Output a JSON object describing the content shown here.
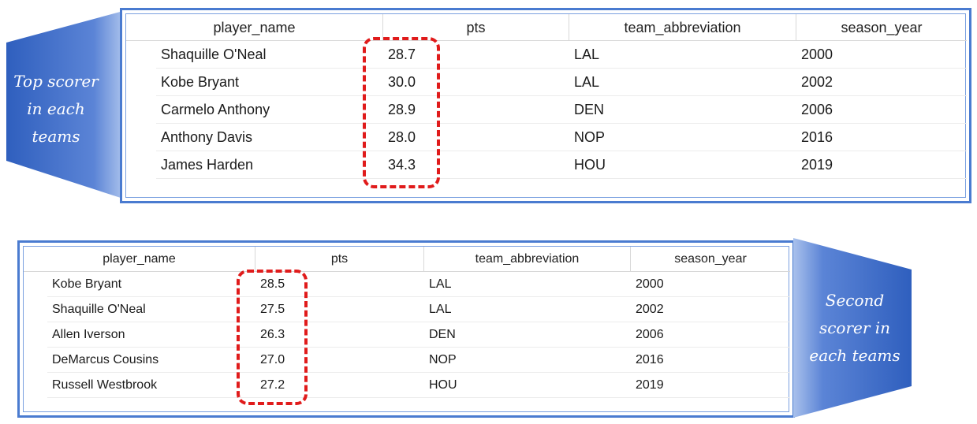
{
  "top_table": {
    "callout": {
      "lines": [
        "Top scorer",
        "in each",
        "teams"
      ]
    },
    "columns": [
      "player_name",
      "pts",
      "team_abbreviation",
      "season_year"
    ],
    "rows": [
      [
        "Shaquille O'Neal",
        "28.7",
        "LAL",
        "2000"
      ],
      [
        "Kobe Bryant",
        "30.0",
        "LAL",
        "2002"
      ],
      [
        "Carmelo Anthony",
        "28.9",
        "DEN",
        "2006"
      ],
      [
        "Anthony Davis",
        "28.0",
        "NOP",
        "2016"
      ],
      [
        "James Harden",
        "34.3",
        "HOU",
        "2019"
      ]
    ]
  },
  "bottom_table": {
    "callout": {
      "lines": [
        "Second",
        "scorer in",
        "each teams"
      ]
    },
    "columns": [
      "player_name",
      "pts",
      "team_abbreviation",
      "season_year"
    ],
    "rows": [
      [
        "Kobe Bryant",
        "28.5",
        "LAL",
        "2000"
      ],
      [
        "Shaquille O'Neal",
        "27.5",
        "LAL",
        "2002"
      ],
      [
        "Allen Iverson",
        "26.3",
        "DEN",
        "2006"
      ],
      [
        "DeMarcus Cousins",
        "27.0",
        "NOP",
        "2016"
      ],
      [
        "Russell Westbrook",
        "27.2",
        "HOU",
        "2019"
      ]
    ]
  },
  "colors": {
    "callout_gradient_dark": "#2f5fbe",
    "callout_gradient_light": "#a9c1ec",
    "frame": "#4a7bd0",
    "highlight": "#e01b1b"
  }
}
